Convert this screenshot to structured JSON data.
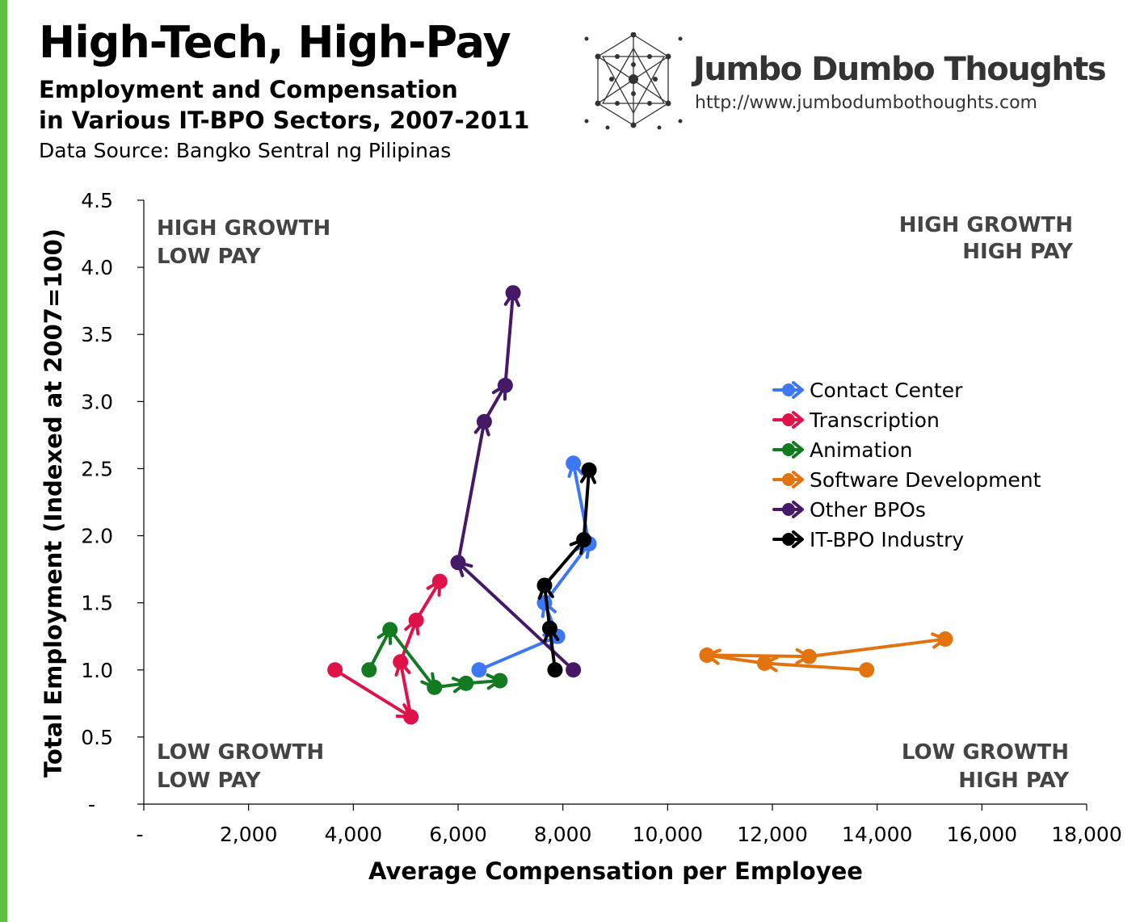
{
  "header": {
    "title": "High-Tech, High-Pay",
    "subtitle_line1": "Employment and Compensation",
    "subtitle_line2": "in Various IT-BPO Sectors, 2007-2011",
    "source": "Data Source: Bangko Sentral ng Pilipinas"
  },
  "brand": {
    "name": "Jumbo Dumbo Thoughts",
    "url": "http://www.jumbodumbothoughts.com"
  },
  "chart_data": {
    "type": "scatter",
    "xlabel": "Average Compensation per Employee",
    "ylabel": "Total Employment (Indexed at 2007=100)",
    "xlim": [
      0,
      18000
    ],
    "ylim": [
      0,
      4.5
    ],
    "x_ticks": [
      "-",
      "2,000",
      "4,000",
      "6,000",
      "8,000",
      "10,000",
      "12,000",
      "14,000",
      "16,000",
      "18,000"
    ],
    "y_ticks": [
      "-",
      "0.5",
      "1.0",
      "1.5",
      "2.0",
      "2.5",
      "3.0",
      "3.5",
      "4.0",
      "4.5"
    ],
    "grid": false,
    "legend_position": "right",
    "quadrant_labels": {
      "top_left": [
        "HIGH GROWTH",
        "LOW PAY"
      ],
      "top_right": [
        "HIGH GROWTH",
        "HIGH PAY"
      ],
      "bottom_left": [
        "LOW GROWTH",
        "LOW PAY"
      ],
      "bottom_right": [
        "LOW GROWTH",
        "HIGH PAY"
      ]
    },
    "series": [
      {
        "name": "Contact Center",
        "color": "#3d77f5",
        "points": [
          [
            6400,
            1.0
          ],
          [
            7900,
            1.25
          ],
          [
            7650,
            1.5
          ],
          [
            8500,
            1.94
          ],
          [
            8200,
            2.54
          ]
        ]
      },
      {
        "name": "Transcription",
        "color": "#e0124a",
        "points": [
          [
            3650,
            1.0
          ],
          [
            5100,
            0.65
          ],
          [
            4900,
            1.06
          ],
          [
            5200,
            1.37
          ],
          [
            5650,
            1.66
          ]
        ]
      },
      {
        "name": "Animation",
        "color": "#127a21",
        "points": [
          [
            4300,
            1.0
          ],
          [
            4700,
            1.3
          ],
          [
            5550,
            0.87
          ],
          [
            6150,
            0.9
          ],
          [
            6800,
            0.92
          ]
        ]
      },
      {
        "name": "Software Development",
        "color": "#e2730e",
        "points": [
          [
            13800,
            1.0
          ],
          [
            11850,
            1.05
          ],
          [
            10750,
            1.11
          ],
          [
            12700,
            1.1
          ],
          [
            15300,
            1.23
          ]
        ]
      },
      {
        "name": "Other BPOs",
        "color": "#461967",
        "points": [
          [
            8200,
            1.0
          ],
          [
            6000,
            1.8
          ],
          [
            6500,
            2.85
          ],
          [
            6900,
            3.12
          ],
          [
            7050,
            3.81
          ]
        ]
      },
      {
        "name": "IT-BPO Industry",
        "color": "#000000",
        "points": [
          [
            7850,
            1.0
          ],
          [
            7750,
            1.31
          ],
          [
            7650,
            1.63
          ],
          [
            8400,
            1.97
          ],
          [
            8500,
            2.49
          ]
        ]
      }
    ]
  }
}
